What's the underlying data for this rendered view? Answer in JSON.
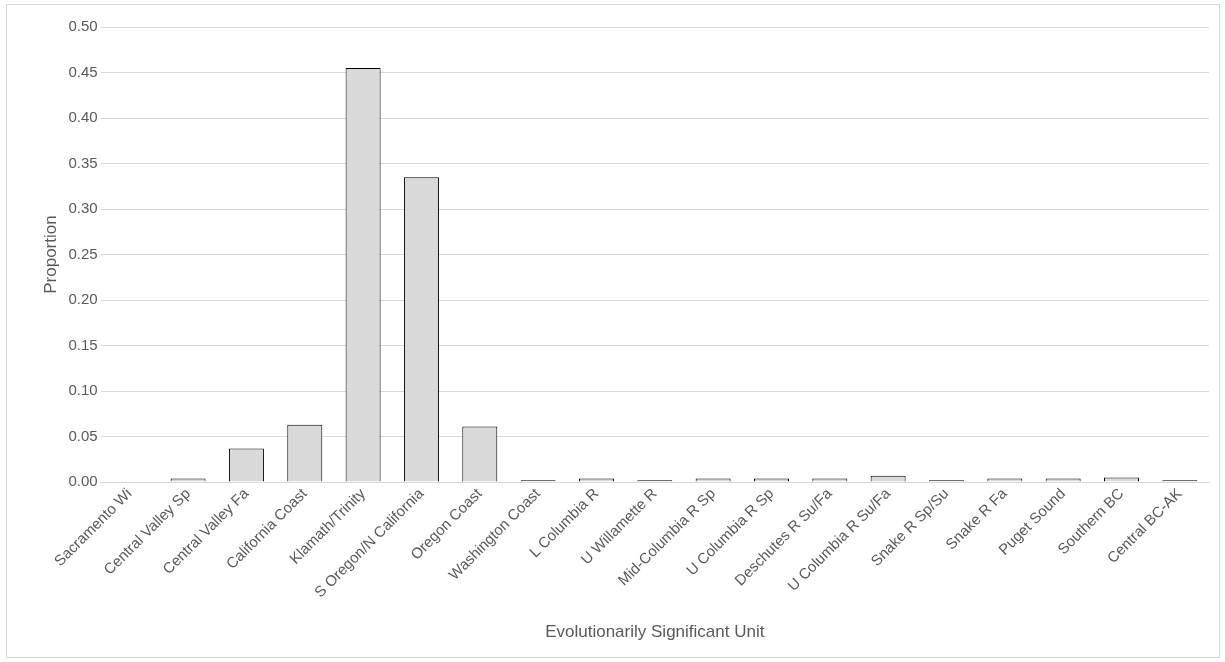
{
  "chart_data": {
    "type": "bar",
    "xlabel": "Evolutionarily Significant Unit",
    "ylabel": "Proportion",
    "categories": [
      "Sacramento Wi",
      "Central Valley Sp",
      "Central Valley Fa",
      "California Coast",
      "Klamath/Trinity",
      "S Oregon/N California",
      "Oregon Coast",
      "Washington Coast",
      "L Columbia R",
      "U Willamette R",
      "Mid-Columbia R Sp",
      "U Columbia R Sp",
      "Deschutes R Su/Fa",
      "U Columbia R Su/Fa",
      "Snake R Sp/Su",
      "Snake R Fa",
      "Puget Sound",
      "Southern BC",
      "Central BC-AK"
    ],
    "values": [
      0,
      0.004,
      0.037,
      0.063,
      0.455,
      0.335,
      0.061,
      0.002,
      0.004,
      0.002,
      0.004,
      0.004,
      0.004,
      0.007,
      0.002,
      0.004,
      0.004,
      0.005,
      0.002
    ],
    "color": "#d9d9d9",
    "ylim": [
      0,
      0.5
    ],
    "yticks": [
      {
        "value": 0,
        "label": "0.00"
      },
      {
        "value": 0.05,
        "label": "0.05"
      },
      {
        "value": 0.1,
        "label": "0.10"
      },
      {
        "value": 0.15,
        "label": "0.15"
      },
      {
        "value": 0.2,
        "label": "0.20"
      },
      {
        "value": 0.25,
        "label": "0.25"
      },
      {
        "value": 0.3,
        "label": "0.30"
      },
      {
        "value": 0.35,
        "label": "0.35"
      },
      {
        "value": 0.4,
        "label": "0.40"
      },
      {
        "value": 0.45,
        "label": "0.45"
      },
      {
        "value": 0.5,
        "label": "0.50"
      }
    ],
    "grid": "y"
  }
}
